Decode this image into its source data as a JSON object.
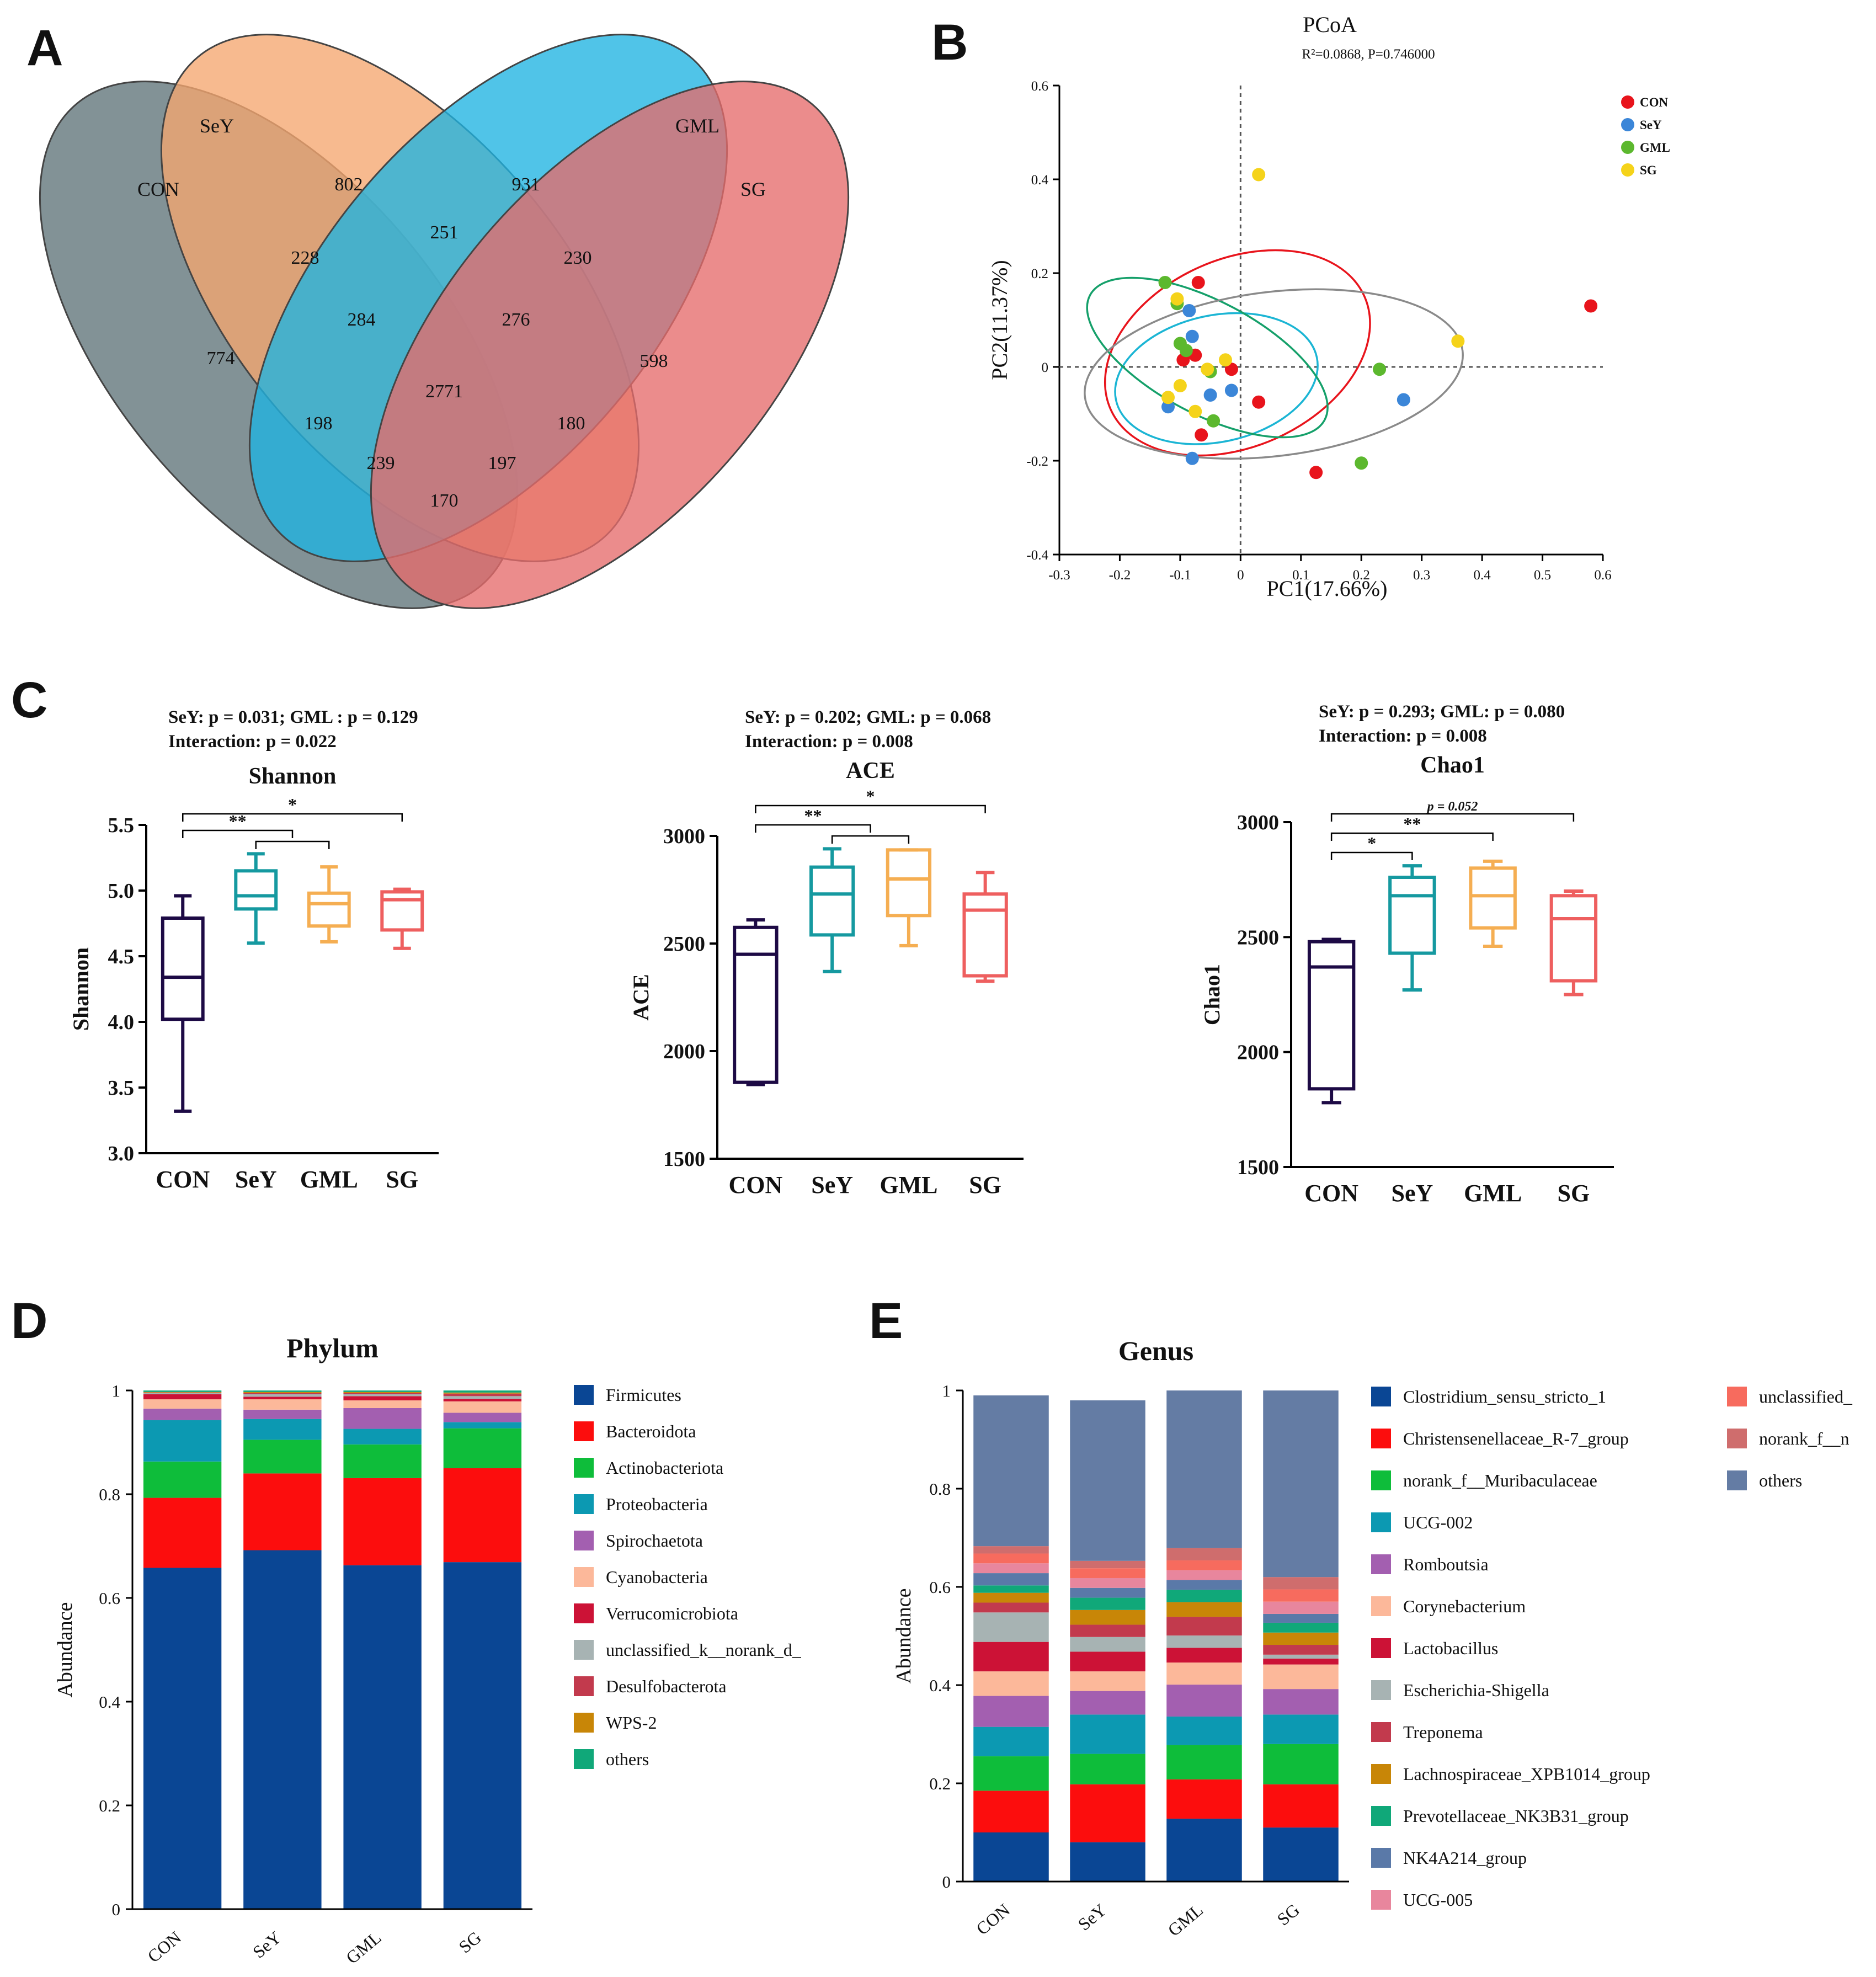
{
  "panels": {
    "A": {
      "letter": "A"
    },
    "B": {
      "letter": "B"
    },
    "C": {
      "letter": "C"
    },
    "D": {
      "letter": "D"
    },
    "E": {
      "letter": "E"
    }
  },
  "chart_data": [
    {
      "type": "venn",
      "panel": "A",
      "sets": [
        {
          "name": "CON",
          "color": "#5f7378"
        },
        {
          "name": "SeY",
          "color": "#f5a66f"
        },
        {
          "name": "GML",
          "color": "#1fb4e2"
        },
        {
          "name": "SG",
          "color": "#e56b6b"
        }
      ],
      "regions": [
        {
          "sets": "CON",
          "value": "774"
        },
        {
          "sets": "SeY",
          "value": "802"
        },
        {
          "sets": "GML",
          "value": "931"
        },
        {
          "sets": "SG",
          "value": "598"
        },
        {
          "sets": "CON,SeY",
          "value": "228"
        },
        {
          "sets": "SeY,GML",
          "value": "251"
        },
        {
          "sets": "GML,SG",
          "value": "230"
        },
        {
          "sets": "CON,SeY,GML",
          "value": "284"
        },
        {
          "sets": "SeY,GML,SG",
          "value": "276"
        },
        {
          "sets": "CON,SeY,GML,SG",
          "value": "2771"
        },
        {
          "sets": "CON,GML",
          "value": "198"
        },
        {
          "sets": "SeY,SG",
          "value": "180"
        },
        {
          "sets": "CON,GML,SG",
          "value": "239"
        },
        {
          "sets": "CON,SeY,SG",
          "value": "197"
        },
        {
          "sets": "CON,SG",
          "value": "170"
        }
      ]
    },
    {
      "type": "scatter",
      "panel": "B",
      "title": "PCoA",
      "subtitle": "R²=0.0868, P=0.746000",
      "xlabel": "PC1(17.66%)",
      "ylabel": "PC2(11.37%)",
      "xlim": [
        -0.3,
        0.6
      ],
      "ylim": [
        -0.4,
        0.6
      ],
      "xticks": [
        "-0.3",
        "-0.2",
        "-0.1",
        "0",
        "0.1",
        "0.2",
        "0.3",
        "0.4",
        "0.5",
        "0.6"
      ],
      "yticks": [
        "-0.4",
        "-0.2",
        "0",
        "0.2",
        "0.4",
        "0.6"
      ],
      "legend_position": "top-right",
      "series": [
        {
          "name": "CON",
          "color": "#e8141c",
          "points": [
            [
              -0.07,
              0.18
            ],
            [
              -0.095,
              0.015
            ],
            [
              -0.075,
              0.025
            ],
            [
              -0.015,
              -0.005
            ],
            [
              0.03,
              -0.075
            ],
            [
              -0.065,
              -0.145
            ],
            [
              0.125,
              -0.225
            ],
            [
              0.58,
              0.13
            ]
          ]
        },
        {
          "name": "SeY",
          "color": "#3b86d8",
          "points": [
            [
              -0.085,
              0.12
            ],
            [
              -0.08,
              0.065
            ],
            [
              -0.05,
              -0.06
            ],
            [
              -0.015,
              -0.05
            ],
            [
              -0.12,
              -0.085
            ],
            [
              -0.08,
              -0.195
            ],
            [
              0.27,
              -0.07
            ]
          ]
        },
        {
          "name": "GML",
          "color": "#5cb82e",
          "points": [
            [
              -0.125,
              0.18
            ],
            [
              -0.105,
              0.135
            ],
            [
              -0.1,
              0.05
            ],
            [
              -0.09,
              0.035
            ],
            [
              -0.05,
              -0.01
            ],
            [
              -0.045,
              -0.115
            ],
            [
              0.23,
              -0.005
            ],
            [
              0.2,
              -0.205
            ]
          ]
        },
        {
          "name": "SG",
          "color": "#f5d31a",
          "points": [
            [
              0.03,
              0.41
            ],
            [
              -0.105,
              0.145
            ],
            [
              -0.025,
              0.015
            ],
            [
              -0.055,
              -0.005
            ],
            [
              -0.1,
              -0.04
            ],
            [
              -0.12,
              -0.065
            ],
            [
              -0.075,
              -0.095
            ],
            [
              0.36,
              0.055
            ]
          ]
        }
      ],
      "ellipses": [
        {
          "group": "CON",
          "color": "#e8141c",
          "center": [
            -0.005,
            0.03
          ],
          "radii": [
            0.23,
            0.2
          ],
          "angle_deg": 24
        },
        {
          "group": "SeY",
          "color": "#1bb5d4",
          "center": [
            -0.04,
            -0.025
          ],
          "radii": [
            0.17,
            0.135
          ],
          "angle_deg": 12
        },
        {
          "group": "GML",
          "color": "#15a06a",
          "center": [
            -0.055,
            0.02
          ],
          "radii": [
            0.22,
            0.12
          ],
          "angle_deg": -28
        },
        {
          "group": "SG",
          "color": "#8a8a8a",
          "center": [
            0.055,
            -0.015
          ],
          "radii": [
            0.315,
            0.175
          ],
          "angle_deg": 7
        }
      ]
    },
    {
      "type": "box",
      "panel": "C1",
      "stats_line1": "SeY: p = 0.031;  GML : p = 0.129",
      "stats_line2": "Interaction: p = 0.022",
      "title": "Shannon",
      "ylabel": "Shannon",
      "ylim": [
        3.0,
        5.5
      ],
      "yticks": [
        "3.0",
        "3.5",
        "4.0",
        "4.5",
        "5.0",
        "5.5"
      ],
      "categories": [
        "CON",
        "SeY",
        "GML",
        "SG"
      ],
      "colors": [
        "#1d0a45",
        "#1599a0",
        "#f5ae52",
        "#ee5f5f"
      ],
      "boxes": [
        {
          "min": 3.32,
          "q1": 4.02,
          "median": 4.34,
          "q3": 4.79,
          "max": 4.96
        },
        {
          "min": 4.6,
          "q1": 4.86,
          "median": 4.96,
          "q3": 5.15,
          "max": 5.28
        },
        {
          "min": 4.61,
          "q1": 4.73,
          "median": 4.9,
          "q3": 4.98,
          "max": 5.18
        },
        {
          "min": 4.56,
          "q1": 4.7,
          "median": 4.93,
          "q3": 4.99,
          "max": 5.01
        }
      ],
      "brackets": [
        {
          "from": 0,
          "to": 3,
          "label": "*"
        },
        {
          "from": 0,
          "to": 1.5,
          "label": "**"
        },
        {
          "from": 1,
          "to": 2,
          "label": ""
        }
      ]
    },
    {
      "type": "box",
      "panel": "C2",
      "stats_line1": "SeY: p = 0.202;  GML: p = 0.068",
      "stats_line2": "Interaction: p = 0.008",
      "title": "ACE",
      "ylabel": "ACE",
      "ylim": [
        1500,
        3000
      ],
      "yticks": [
        "1500",
        "2000",
        "2500",
        "3000"
      ],
      "categories": [
        "CON",
        "SeY",
        "GML",
        "SG"
      ],
      "colors": [
        "#1d0a45",
        "#1599a0",
        "#f5ae52",
        "#ee5f5f"
      ],
      "boxes": [
        {
          "min": 1845,
          "q1": 1855,
          "median": 2450,
          "q3": 2575,
          "max": 2610
        },
        {
          "min": 2370,
          "q1": 2540,
          "median": 2730,
          "q3": 2855,
          "max": 2940
        },
        {
          "min": 2490,
          "q1": 2630,
          "median": 2800,
          "q3": 2935,
          "max": 2935
        },
        {
          "min": 2325,
          "q1": 2350,
          "median": 2655,
          "q3": 2730,
          "max": 2830
        }
      ],
      "brackets": [
        {
          "from": 0,
          "to": 3,
          "label": "*"
        },
        {
          "from": 0,
          "to": 1.5,
          "label": "**"
        },
        {
          "from": 1,
          "to": 2,
          "label": ""
        }
      ]
    },
    {
      "type": "box",
      "panel": "C3",
      "stats_line1": "SeY: p = 0.293;  GML: p = 0.080",
      "stats_line2": "Interaction: p = 0.008",
      "title": "Chao1",
      "ylabel": "Chao1",
      "ylim": [
        1500,
        3000
      ],
      "yticks": [
        "1500",
        "2000",
        "2500",
        "3000"
      ],
      "categories": [
        "CON",
        "SeY",
        "GML",
        "SG"
      ],
      "colors": [
        "#1d0a45",
        "#1599a0",
        "#f5ae52",
        "#ee5f5f"
      ],
      "boxes": [
        {
          "min": 1780,
          "q1": 1840,
          "median": 2370,
          "q3": 2480,
          "max": 2490
        },
        {
          "min": 2270,
          "q1": 2430,
          "median": 2680,
          "q3": 2760,
          "max": 2810
        },
        {
          "min": 2460,
          "q1": 2540,
          "median": 2680,
          "q3": 2800,
          "max": 2830
        },
        {
          "min": 2250,
          "q1": 2310,
          "median": 2580,
          "q3": 2680,
          "max": 2700
        }
      ],
      "brackets": [
        {
          "from": 0,
          "to": 3,
          "label": "p = 0.052"
        },
        {
          "from": 0,
          "to": 2,
          "label": "**"
        },
        {
          "from": 0,
          "to": 1,
          "label": "*"
        }
      ]
    },
    {
      "type": "bar",
      "stacked": true,
      "panel": "D",
      "title": "Phylum",
      "ylabel": "Abundance",
      "ylim": [
        0,
        1
      ],
      "yticks": [
        "0",
        "0.2",
        "0.4",
        "0.6",
        "0.8",
        "1"
      ],
      "categories": [
        "CON",
        "SeY",
        "GML",
        "SG"
      ],
      "series": [
        {
          "name": "Firmicutes",
          "color": "#0a4694",
          "values": [
            0.658,
            0.692,
            0.663,
            0.669
          ]
        },
        {
          "name": "Bacteroidota",
          "color": "#fc0d0d",
          "values": [
            0.135,
            0.148,
            0.168,
            0.181
          ]
        },
        {
          "name": "Actinobacteriota",
          "color": "#0ebd3a",
          "values": [
            0.07,
            0.065,
            0.065,
            0.077
          ]
        },
        {
          "name": "Proteobacteria",
          "color": "#0c99b2",
          "values": [
            0.08,
            0.04,
            0.03,
            0.012
          ]
        },
        {
          "name": "Spirochaetota",
          "color": "#a35fb0",
          "values": [
            0.022,
            0.018,
            0.04,
            0.018
          ]
        },
        {
          "name": "Cyanobacteria",
          "color": "#fcb89a",
          "values": [
            0.018,
            0.02,
            0.015,
            0.022
          ]
        },
        {
          "name": "Verrucomicrobiota",
          "color": "#cc1236",
          "values": [
            0.01,
            0.005,
            0.008,
            0.005
          ]
        },
        {
          "name": "unclassified_k__norank_d_",
          "color": "#a7b3b3",
          "values": [
            0.002,
            0.005,
            0.004,
            0.005
          ]
        },
        {
          "name": "Desulfobacterota",
          "color": "#c23a4d",
          "values": [
            0.001,
            0.002,
            0.002,
            0.005
          ]
        },
        {
          "name": "WPS-2",
          "color": "#c88607",
          "values": [
            0.001,
            0.002,
            0.002,
            0.002
          ]
        },
        {
          "name": "others",
          "color": "#10a879",
          "values": [
            0.003,
            0.003,
            0.003,
            0.004
          ]
        }
      ]
    },
    {
      "type": "bar",
      "stacked": true,
      "panel": "E",
      "title": "Genus",
      "ylabel": "Abundance",
      "ylim": [
        0,
        1
      ],
      "yticks": [
        "0",
        "0.2",
        "0.4",
        "0.6",
        "0.8",
        "1"
      ],
      "categories": [
        "CON",
        "SeY",
        "GML",
        "SG"
      ],
      "series": [
        {
          "name": "Clostridium_sensu_stricto_1",
          "color": "#0a4694",
          "values": [
            0.1,
            0.08,
            0.128,
            0.11
          ]
        },
        {
          "name": "Christensenellaceae_R-7_group",
          "color": "#fc0d0d",
          "values": [
            0.085,
            0.118,
            0.08,
            0.088
          ]
        },
        {
          "name": "norank_f__Muribaculaceae",
          "color": "#0ebd3a",
          "values": [
            0.07,
            0.062,
            0.07,
            0.082
          ]
        },
        {
          "name": "UCG-002",
          "color": "#0c99b2",
          "values": [
            0.06,
            0.08,
            0.058,
            0.06
          ]
        },
        {
          "name": "Romboutsia",
          "color": "#a35fb0",
          "values": [
            0.063,
            0.048,
            0.065,
            0.052
          ]
        },
        {
          "name": "Corynebacterium",
          "color": "#fcb89a",
          "values": [
            0.05,
            0.04,
            0.045,
            0.05
          ]
        },
        {
          "name": "Lactobacillus",
          "color": "#cc1236",
          "values": [
            0.06,
            0.04,
            0.03,
            0.012
          ]
        },
        {
          "name": "Escherichia-Shigella",
          "color": "#a7b3b3",
          "values": [
            0.06,
            0.03,
            0.025,
            0.008
          ]
        },
        {
          "name": "Treponema",
          "color": "#c23a4d",
          "values": [
            0.02,
            0.025,
            0.038,
            0.02
          ]
        },
        {
          "name": "Lachnospiraceae_XPB1014_group",
          "color": "#c88607",
          "values": [
            0.02,
            0.03,
            0.03,
            0.025
          ]
        },
        {
          "name": "Prevotellaceae_NK3B31_group",
          "color": "#10a879",
          "values": [
            0.015,
            0.025,
            0.025,
            0.02
          ]
        },
        {
          "name": "NK4A214_group",
          "color": "#5a79a8",
          "values": [
            0.025,
            0.02,
            0.02,
            0.018
          ]
        },
        {
          "name": "UCG-005",
          "color": "#e8869d",
          "values": [
            0.02,
            0.02,
            0.02,
            0.025
          ]
        },
        {
          "name": "unclassified_",
          "color": "#f76b5e",
          "values": [
            0.02,
            0.02,
            0.02,
            0.025
          ]
        },
        {
          "name": "norank_f__n",
          "color": "#cf6d6d",
          "values": [
            0.015,
            0.015,
            0.025,
            0.025
          ]
        },
        {
          "name": "others",
          "color": "#647ca4",
          "values": [
            0.307,
            0.327,
            0.321,
            0.38
          ]
        }
      ]
    }
  ]
}
